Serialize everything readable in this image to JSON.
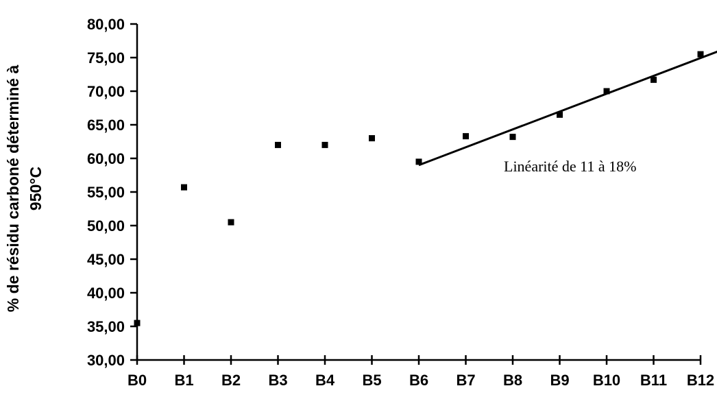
{
  "chart_data": {
    "type": "scatter",
    "categories": [
      "B0",
      "B1",
      "B2",
      "B3",
      "B4",
      "B5",
      "B6",
      "B7",
      "B8",
      "B9",
      "B10",
      "B11",
      "B12"
    ],
    "values": [
      35.5,
      55.7,
      50.5,
      62.0,
      62.0,
      63.0,
      59.5,
      63.3,
      63.2,
      66.5,
      70.0,
      71.7,
      75.5
    ],
    "ylabel_line1": "% de résidu carboné déterminé à",
    "ylabel_line2": "950°C",
    "ylim": [
      30,
      80
    ],
    "ytick_step": 5,
    "ytick_labels": [
      "30,00",
      "35,00",
      "40,00",
      "45,00",
      "50,00",
      "55,00",
      "60,00",
      "65,00",
      "70,00",
      "75,00",
      "80,00"
    ],
    "grid": false,
    "trendline": {
      "x_start_index": 6,
      "x_end_index": 12.4,
      "y_start": 59.0,
      "y_end": 76.0
    },
    "annotation": "Linéarité de 11 à 18%"
  }
}
